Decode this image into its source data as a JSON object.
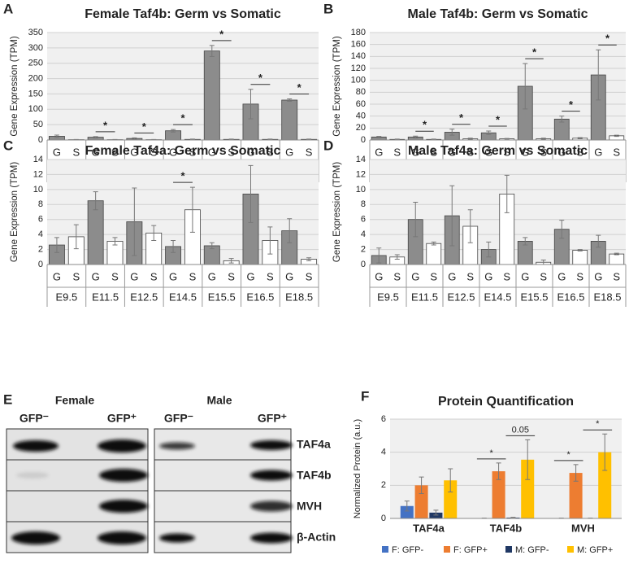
{
  "chart_data": [
    {
      "type": "bar",
      "panel": "A",
      "title": "Female Taf4b: Germ vs Somatic",
      "ylabel": "Gene Expression (TPM)",
      "categories": [
        "G",
        "S",
        "G",
        "S",
        "G",
        "S",
        "G",
        "S",
        "G",
        "S",
        "G",
        "S",
        "G",
        "S"
      ],
      "groups": [
        "E9.5",
        "E11.5",
        "E12.5",
        "E14.5",
        "E15.5",
        "E16.5",
        "E18.5"
      ],
      "values": [
        12,
        1,
        9,
        1,
        5,
        1,
        30,
        2,
        290,
        2,
        117,
        2,
        130,
        2
      ],
      "errors": [
        4,
        0.5,
        2,
        0.5,
        2,
        0.5,
        4,
        1,
        18,
        1,
        48,
        1,
        4,
        1
      ],
      "annotations": [
        null,
        "*",
        "*",
        "*",
        "*",
        "*",
        "*"
      ],
      "colors": [
        "#8c8c8c",
        "#ffffff"
      ],
      "ylim": [
        0,
        350
      ],
      "yticks": [
        0,
        50,
        100,
        150,
        200,
        250,
        300,
        350
      ],
      "grid": true
    },
    {
      "type": "bar",
      "panel": "B",
      "title": "Male Taf4b: Germ vs Somatic",
      "ylabel": "Gene Expression (TPM)",
      "categories": [
        "G",
        "S",
        "G",
        "S",
        "G",
        "S",
        "G",
        "S",
        "G",
        "S",
        "G",
        "S",
        "G",
        "S"
      ],
      "groups": [
        "E9.5",
        "E11.5",
        "E12.5",
        "E14.5",
        "E15.5",
        "E16.5",
        "E18.5"
      ],
      "values": [
        5,
        1,
        5,
        1,
        13,
        2,
        12,
        2,
        90,
        2,
        35,
        3,
        109,
        7
      ],
      "errors": [
        1,
        0.5,
        1.5,
        0.5,
        5,
        1,
        3,
        0.5,
        38,
        1,
        5,
        1,
        42,
        1
      ],
      "annotations": [
        null,
        "*",
        "*",
        "*",
        "*",
        "*",
        "*"
      ],
      "colors": [
        "#8c8c8c",
        "#ffffff"
      ],
      "ylim": [
        0,
        180
      ],
      "yticks": [
        0,
        20,
        40,
        60,
        80,
        100,
        120,
        140,
        160,
        180
      ],
      "grid": true
    },
    {
      "type": "bar",
      "panel": "C",
      "title": "Female Taf4a: Germ vs Somatic",
      "ylabel": "Gene Expression (TPM)",
      "categories": [
        "G",
        "S",
        "G",
        "S",
        "G",
        "S",
        "G",
        "S",
        "G",
        "S",
        "G",
        "S",
        "G",
        "S"
      ],
      "groups": [
        "E9.5",
        "E11.5",
        "E12.5",
        "E14.5",
        "E15.5",
        "E16.5",
        "E18.5"
      ],
      "values": [
        2.6,
        3.7,
        8.5,
        3.1,
        5.7,
        4.2,
        2.4,
        7.3,
        2.5,
        0.5,
        9.4,
        3.2,
        4.5,
        0.7
      ],
      "errors": [
        1,
        1.6,
        1.2,
        0.5,
        4.5,
        1,
        0.8,
        3,
        0.4,
        0.3,
        3.8,
        1.8,
        1.6,
        0.2
      ],
      "annotations": [
        null,
        null,
        null,
        "*",
        null,
        null,
        null
      ],
      "colors": [
        "#8c8c8c",
        "#ffffff"
      ],
      "ylim": [
        0,
        14
      ],
      "yticks": [
        0,
        2,
        4,
        6,
        8,
        10,
        12,
        14
      ],
      "grid": true
    },
    {
      "type": "bar",
      "panel": "D",
      "title": "Male Taf4a: Germ vs Somatic",
      "ylabel": "Gene Expression (TPM)",
      "categories": [
        "G",
        "S",
        "G",
        "S",
        "G",
        "S",
        "G",
        "S",
        "G",
        "S",
        "G",
        "S",
        "G",
        "S"
      ],
      "groups": [
        "E9.5",
        "E11.5",
        "E12.5",
        "E14.5",
        "E15.5",
        "E16.5",
        "E18.5"
      ],
      "values": [
        1.2,
        1.0,
        6.0,
        2.8,
        6.5,
        5.1,
        2.0,
        9.4,
        3.1,
        0.3,
        4.7,
        1.9,
        3.1,
        1.4
      ],
      "errors": [
        1,
        0.3,
        2.3,
        0.2,
        4,
        2.2,
        1,
        2.5,
        0.5,
        0.3,
        1.2,
        0.1,
        0.8,
        0.1
      ],
      "colors": [
        "#8c8c8c",
        "#ffffff"
      ],
      "ylim": [
        0,
        14
      ],
      "yticks": [
        0,
        2,
        4,
        6,
        8,
        10,
        12,
        14
      ],
      "grid": true
    },
    {
      "type": "grouped-bar",
      "panel": "F",
      "title": "Protein Quantification",
      "ylabel": "Normalized Protein (a.u.)",
      "categories": [
        "TAF4a",
        "TAF4b",
        "MVH"
      ],
      "series": [
        {
          "name": "F: GFP-",
          "color": "#4472c4",
          "values": [
            0.75,
            0.02,
            0.02
          ],
          "errors": [
            0.3,
            0,
            0
          ]
        },
        {
          "name": "F: GFP+",
          "color": "#ed7d31",
          "values": [
            2.0,
            2.85,
            2.75
          ],
          "errors": [
            0.5,
            0.5,
            0.5
          ]
        },
        {
          "name": "M: GFP-",
          "color": "#203864",
          "values": [
            0.35,
            0.05,
            0.02
          ],
          "errors": [
            0.15,
            0.02,
            0
          ]
        },
        {
          "name": "M: GFP+",
          "color": "#ffc000",
          "values": [
            2.3,
            3.55,
            4.0
          ],
          "errors": [
            0.7,
            1.2,
            1.1
          ]
        }
      ],
      "comparisons": [
        [
          null,
          null
        ],
        [
          "*",
          "0.05"
        ],
        [
          "*",
          "*"
        ]
      ],
      "ylim": [
        0,
        6
      ],
      "yticks": [
        0,
        2,
        4,
        6
      ],
      "grid": true
    }
  ],
  "blot": {
    "panel": "E",
    "groups": [
      "Female",
      "Male"
    ],
    "lanes": [
      "GFP⁻",
      "GFP⁺",
      "GFP⁻",
      "GFP⁺"
    ],
    "rows": [
      "TAF4a",
      "TAF4b",
      "MVH",
      "β-Actin"
    ]
  }
}
